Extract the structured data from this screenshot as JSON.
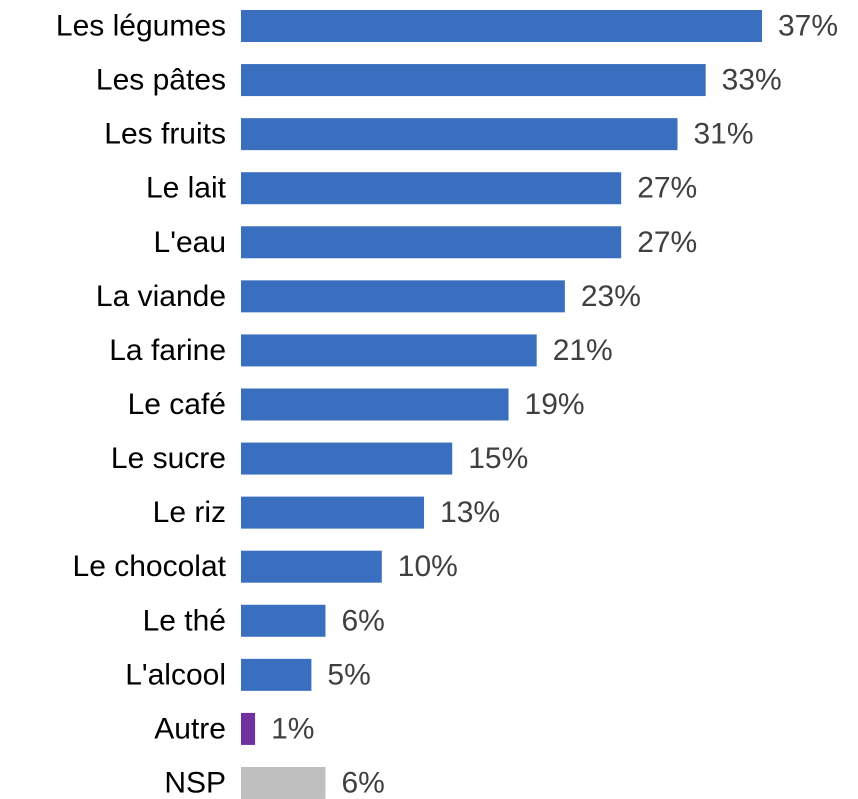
{
  "chart_data": {
    "type": "barh",
    "categories": [
      "Les légumes",
      "Les pâtes",
      "Les fruits",
      "Le lait",
      "L'eau",
      "La viande",
      "La farine",
      "Le café",
      "Le sucre",
      "Le riz",
      "Le chocolat",
      "Le thé",
      "L'alcool",
      "Autre",
      "NSP"
    ],
    "values": [
      37,
      33,
      31,
      27,
      27,
      23,
      21,
      19,
      15,
      13,
      10,
      6,
      5,
      1,
      6
    ],
    "value_labels": [
      "37%",
      "33%",
      "31%",
      "27%",
      "27%",
      "23%",
      "21%",
      "19%",
      "15%",
      "13%",
      "10%",
      "6%",
      "5%",
      "1%",
      "6%"
    ],
    "colors": [
      "#3a6fbf",
      "#3a6fbf",
      "#3a6fbf",
      "#3a6fbf",
      "#3a6fbf",
      "#3a6fbf",
      "#3a6fbf",
      "#3a6fbf",
      "#3a6fbf",
      "#3a6fbf",
      "#3a6fbf",
      "#3a6fbf",
      "#3a6fbf",
      "#7030a0",
      "#bfbfbf"
    ]
  }
}
